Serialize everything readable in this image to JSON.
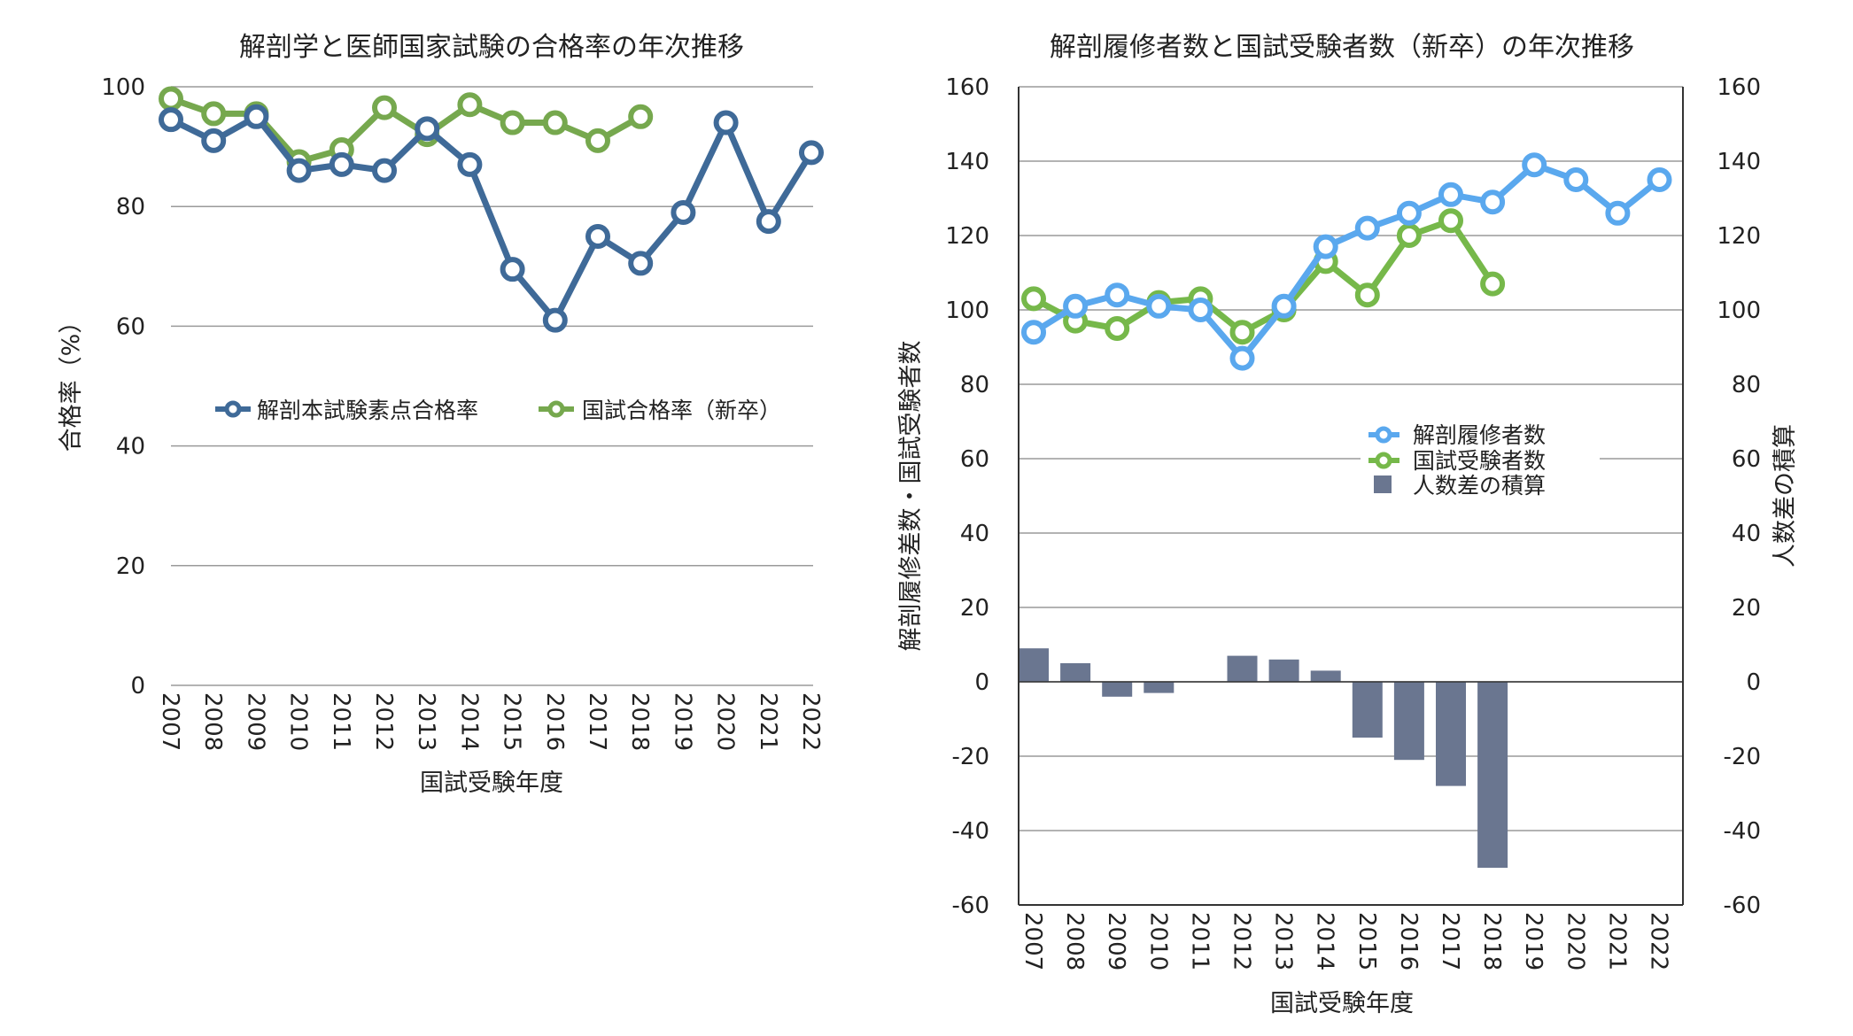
{
  "chart_data": [
    {
      "type": "line",
      "title": "解剖学と医師国家試験の合格率の年次推移",
      "xlabel": "国試受験年度",
      "ylabel": "合格率（%）",
      "ylim": [
        0,
        100
      ],
      "yticks": [
        "0",
        "20",
        "40",
        "60",
        "80",
        "100"
      ],
      "categories": [
        "2007",
        "2008",
        "2009",
        "2010",
        "2011",
        "2012",
        "2013",
        "2014",
        "2015",
        "2016",
        "2017",
        "2018",
        "2019",
        "2020",
        "2021",
        "2022"
      ],
      "series": [
        {
          "name": "解剖本試験素点合格率",
          "color": "#3f6a98",
          "values": [
            94.5,
            91.0,
            95.0,
            86.0,
            87.0,
            86.0,
            93.0,
            87.0,
            69.5,
            61.0,
            75.0,
            70.5,
            79.0,
            94.0,
            77.5,
            89.0
          ]
        },
        {
          "name": "国試合格率（新卒）",
          "color": "#76a84e",
          "values": [
            98.0,
            95.5,
            95.5,
            87.5,
            89.5,
            96.5,
            92.0,
            97.0,
            94.0,
            94.0,
            91.0,
            95.0,
            null,
            null,
            null,
            null
          ]
        }
      ],
      "legend": "center"
    },
    {
      "type": "line",
      "title": "解剖履修者数と国試受験者数（新卒）の年次推移",
      "xlabel": "国試受験年度",
      "ylabel": "解剖履修差数・国試受験者数",
      "ylabel_right": "人数差の積算",
      "ylim": [
        -60,
        160
      ],
      "yticks": [
        "-60",
        "-40",
        "-20",
        "0",
        "20",
        "40",
        "60",
        "80",
        "100",
        "120",
        "140",
        "160"
      ],
      "categories": [
        "2007",
        "2008",
        "2009",
        "2010",
        "2011",
        "2012",
        "2013",
        "2014",
        "2015",
        "2016",
        "2017",
        "2018",
        "2019",
        "2020",
        "2021",
        "2022"
      ],
      "series": [
        {
          "name": "解剖履修者数",
          "kind": "line",
          "color": "#5aa8ee",
          "values": [
            94,
            101,
            104,
            101,
            100,
            87,
            101,
            117,
            122,
            126,
            131,
            129,
            139,
            135,
            126,
            135
          ]
        },
        {
          "name": "国試受験者数",
          "kind": "line",
          "color": "#76b84a",
          "values": [
            103,
            97,
            95,
            102,
            103,
            94,
            100,
            113,
            104,
            120,
            124,
            107,
            null,
            null,
            null,
            null
          ]
        },
        {
          "name": "人数差の積算",
          "kind": "bar",
          "color": "#6a7690",
          "values": [
            9,
            5,
            -4,
            -3,
            0,
            7,
            6,
            3,
            -15,
            -21,
            -28,
            -50,
            null,
            null,
            null,
            null
          ]
        }
      ],
      "legend": "center-right"
    }
  ]
}
